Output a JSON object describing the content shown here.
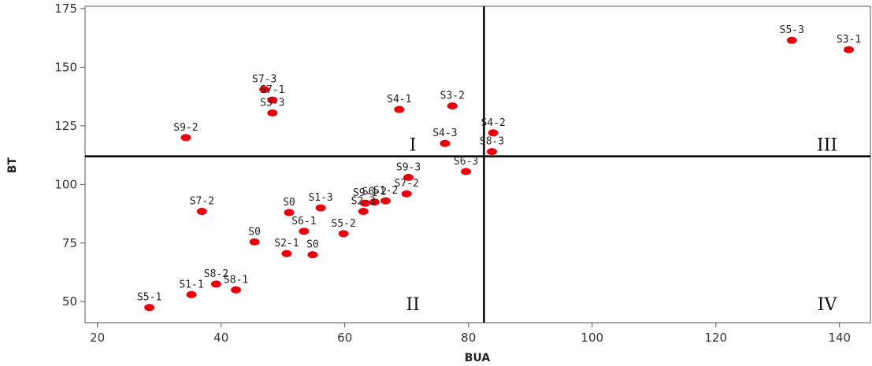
{
  "chart_data": {
    "type": "scatter",
    "title": "",
    "xlabel": "BUA",
    "ylabel": "BT",
    "xlim": [
      18,
      145
    ],
    "ylim": [
      41,
      176
    ],
    "xticks": [
      20,
      40,
      60,
      80,
      100,
      120,
      140
    ],
    "yticks": [
      50,
      75,
      100,
      125,
      150,
      175
    ],
    "grid": false,
    "point_color": "#e8000b",
    "reference_lines": {
      "x": 82.5,
      "y": 112
    },
    "quadrant_labels": [
      {
        "label": "I",
        "x": 71,
        "y": 117
      },
      {
        "label": "III",
        "x": 138,
        "y": 117
      },
      {
        "label": "II",
        "x": 71,
        "y": 49
      },
      {
        "label": "IV",
        "x": 138,
        "y": 49
      }
    ],
    "points": [
      {
        "label": "S5-3",
        "x": 132.3,
        "y": 161.5
      },
      {
        "label": "S3-1",
        "x": 141.5,
        "y": 157.5
      },
      {
        "label": "S7-3",
        "x": 47,
        "y": 140.5
      },
      {
        "label": "S7-1",
        "x": 48.3,
        "y": 136
      },
      {
        "label": "S3-3",
        "x": 48.3,
        "y": 130.5
      },
      {
        "label": "S4-1",
        "x": 68.8,
        "y": 132
      },
      {
        "label": "S3-2",
        "x": 77.4,
        "y": 133.5
      },
      {
        "label": "S9-2",
        "x": 34.3,
        "y": 120
      },
      {
        "label": "S4-2",
        "x": 84,
        "y": 122
      },
      {
        "label": "S4-3",
        "x": 76.2,
        "y": 117.5
      },
      {
        "label": "S8-3",
        "x": 83.8,
        "y": 114
      },
      {
        "label": "S6-3",
        "x": 79.6,
        "y": 105.5
      },
      {
        "label": "S9-3",
        "x": 70.3,
        "y": 103
      },
      {
        "label": "S7-2",
        "x": 70,
        "y": 96
      },
      {
        "label": "S1-2",
        "x": 66.6,
        "y": 93
      },
      {
        "label": "S6-2",
        "x": 64.8,
        "y": 92.5
      },
      {
        "label": "S9-1",
        "x": 63.3,
        "y": 92
      },
      {
        "label": "S2-3",
        "x": 63,
        "y": 88.5
      },
      {
        "label": "S1-3",
        "x": 56.1,
        "y": 90
      },
      {
        "label": "S0",
        "x": 51,
        "y": 88
      },
      {
        "label": "S7-2",
        "x": 36.9,
        "y": 88.5
      },
      {
        "label": "S6-1",
        "x": 53.4,
        "y": 80
      },
      {
        "label": "S5-2",
        "x": 59.8,
        "y": 79
      },
      {
        "label": "S0",
        "x": 45.4,
        "y": 75.5
      },
      {
        "label": "S2-1",
        "x": 50.6,
        "y": 70.5
      },
      {
        "label": "S0",
        "x": 54.8,
        "y": 70
      },
      {
        "label": "S8-2",
        "x": 39.2,
        "y": 57.5
      },
      {
        "label": "S8-1",
        "x": 42.4,
        "y": 55
      },
      {
        "label": "S1-1",
        "x": 35.2,
        "y": 53
      },
      {
        "label": "S5-1",
        "x": 28.4,
        "y": 47.5
      }
    ]
  }
}
